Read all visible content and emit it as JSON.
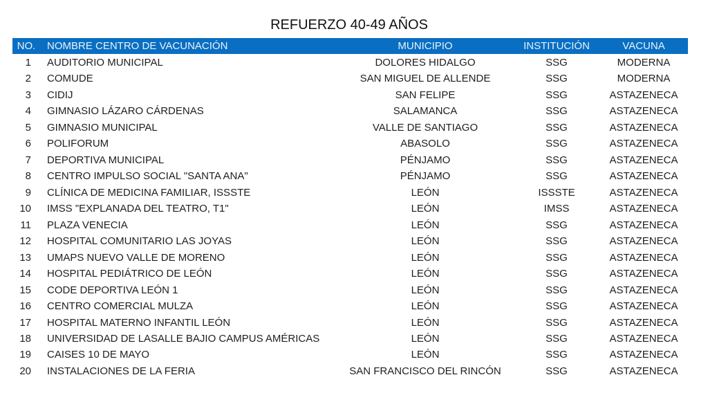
{
  "title": "REFUERZO 40-49 AÑOS",
  "header": {
    "no": "NO.",
    "name": "NOMBRE CENTRO DE VACUNACIÓN",
    "municipio": "MUNICIPIO",
    "institucion": "INSTITUCIÓN",
    "vacuna": "VACUNA"
  },
  "header_color": "#0A6FC2",
  "rows": [
    {
      "no": "1",
      "name": "AUDITORIO MUNICIPAL",
      "municipio": "DOLORES HIDALGO",
      "institucion": "SSG",
      "vacuna": "MODERNA"
    },
    {
      "no": "2",
      "name": "COMUDE",
      "municipio": "SAN MIGUEL DE ALLENDE",
      "institucion": "SSG",
      "vacuna": "MODERNA"
    },
    {
      "no": "3",
      "name": "CIDIJ",
      "municipio": "SAN FELIPE",
      "institucion": "SSG",
      "vacuna": "ASTAZENECA"
    },
    {
      "no": "4",
      "name": "GIMNASIO LÁZARO CÁRDENAS",
      "municipio": "SALAMANCA",
      "institucion": "SSG",
      "vacuna": "ASTAZENECA"
    },
    {
      "no": "5",
      "name": "GIMNASIO MUNICIPAL",
      "municipio": "VALLE DE SANTIAGO",
      "institucion": "SSG",
      "vacuna": "ASTAZENECA"
    },
    {
      "no": "6",
      "name": "POLIFORUM",
      "municipio": "ABASOLO",
      "institucion": "SSG",
      "vacuna": "ASTAZENECA"
    },
    {
      "no": "7",
      "name": "DEPORTIVA MUNICIPAL",
      "municipio": "PÉNJAMO",
      "institucion": "SSG",
      "vacuna": "ASTAZENECA"
    },
    {
      "no": "8",
      "name": "CENTRO IMPULSO SOCIAL \"SANTA ANA\"",
      "municipio": "PÉNJAMO",
      "institucion": "SSG",
      "vacuna": "ASTAZENECA"
    },
    {
      "no": "9",
      "name": "CLÍNICA DE MEDICINA FAMILIAR, ISSSTE",
      "municipio": "LEÓN",
      "institucion": "ISSSTE",
      "vacuna": "ASTAZENECA"
    },
    {
      "no": "10",
      "name": "IMSS \"EXPLANADA DEL TEATRO, T1\"",
      "municipio": "LEÓN",
      "institucion": "IMSS",
      "vacuna": "ASTAZENECA"
    },
    {
      "no": "11",
      "name": "PLAZA VENECIA",
      "municipio": "LEÓN",
      "institucion": "SSG",
      "vacuna": "ASTAZENECA"
    },
    {
      "no": "12",
      "name": "HOSPITAL COMUNITARIO LAS JOYAS",
      "municipio": "LEÓN",
      "institucion": "SSG",
      "vacuna": "ASTAZENECA"
    },
    {
      "no": "13",
      "name": "UMAPS NUEVO VALLE DE MORENO",
      "municipio": "LEÓN",
      "institucion": "SSG",
      "vacuna": "ASTAZENECA"
    },
    {
      "no": "14",
      "name": "HOSPITAL PEDIÁTRICO DE LEÓN",
      "municipio": "LEÓN",
      "institucion": "SSG",
      "vacuna": "ASTAZENECA"
    },
    {
      "no": "15",
      "name": "CODE DEPORTIVA LEÓN 1",
      "municipio": "LEÓN",
      "institucion": "SSG",
      "vacuna": "ASTAZENECA"
    },
    {
      "no": "16",
      "name": "CENTRO COMERCIAL MULZA",
      "municipio": "LEÓN",
      "institucion": "SSG",
      "vacuna": "ASTAZENECA"
    },
    {
      "no": "17",
      "name": "HOSPITAL MATERNO INFANTIL LEÓN",
      "municipio": "LEÓN",
      "institucion": "SSG",
      "vacuna": "ASTAZENECA"
    },
    {
      "no": "18",
      "name": "UNIVERSIDAD DE LASALLE BAJIO CAMPUS AMÉRICAS",
      "municipio": "LEÓN",
      "institucion": "SSG",
      "vacuna": "ASTAZENECA"
    },
    {
      "no": "19",
      "name": "CAISES 10 DE MAYO",
      "municipio": "LEÓN",
      "institucion": "SSG",
      "vacuna": "ASTAZENECA"
    },
    {
      "no": "20",
      "name": "INSTALACIONES DE LA FERIA",
      "municipio": "SAN FRANCISCO DEL RINCÓN",
      "institucion": "SSG",
      "vacuna": "ASTAZENECA"
    }
  ]
}
